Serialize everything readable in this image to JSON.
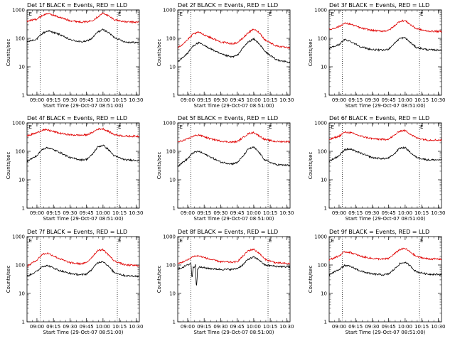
{
  "figure": {
    "xlabel": "Start Time (29-Oct-07 08:51:00)",
    "ylabel": "Counts/sec",
    "x_tick_labels": [
      "09:00",
      "09:15",
      "09:30",
      "09:45",
      "10:00",
      "10:15",
      "10:30"
    ],
    "y_tick_labels": [
      "1",
      "10",
      "100",
      "1000"
    ],
    "marker_text": "E",
    "colors": {
      "events": "#000000",
      "lld": "#e00000",
      "background": "#ffffff"
    }
  },
  "chart_data": [
    {
      "type": "line",
      "title": "Det 1f BLACK = Events, RED = LLD",
      "xlabel": "Start Time (29-Oct-07 08:51:00)",
      "ylabel": "Counts/sec",
      "xlim": [
        "08:51",
        "10:33"
      ],
      "ylim": [
        1,
        1000
      ],
      "yscale": "log",
      "x_ticks": [
        "09:00",
        "09:15",
        "09:30",
        "09:45",
        "10:00",
        "10:15",
        "10:30"
      ],
      "y_ticks": [
        1,
        10,
        100,
        1000
      ],
      "vlines": [
        "09:03",
        "10:13"
      ],
      "markers": [
        {
          "label": "E",
          "x": "08:52"
        },
        {
          "label": "E",
          "x": "10:13"
        }
      ],
      "series": [
        {
          "name": "Events",
          "x": [
            "08:51",
            "09:00",
            "09:05",
            "09:10",
            "09:20",
            "09:30",
            "09:40",
            "09:45",
            "09:50",
            "09:55",
            "10:00",
            "10:05",
            "10:10",
            "10:20",
            "10:33"
          ],
          "y": [
            75,
            95,
            150,
            185,
            140,
            90,
            75,
            80,
            100,
            165,
            205,
            160,
            110,
            75,
            70
          ]
        },
        {
          "name": "LLD",
          "x": [
            "08:51",
            "09:00",
            "09:05",
            "09:10",
            "09:20",
            "09:30",
            "09:40",
            "09:45",
            "09:50",
            "09:55",
            "10:00",
            "10:05",
            "10:10",
            "10:20",
            "10:33"
          ],
          "y": [
            400,
            480,
            640,
            760,
            560,
            420,
            380,
            380,
            420,
            560,
            780,
            620,
            460,
            380,
            370
          ]
        }
      ]
    },
    {
      "type": "line",
      "title": "Det 2f BLACK = Events, RED = LLD",
      "xlabel": "Start Time (29-Oct-07 08:51:00)",
      "ylabel": "Counts/sec",
      "xlim": [
        "08:51",
        "10:33"
      ],
      "ylim": [
        1,
        1000
      ],
      "yscale": "log",
      "x_ticks": [
        "09:00",
        "09:15",
        "09:30",
        "09:45",
        "10:00",
        "10:15",
        "10:30"
      ],
      "y_ticks": [
        1,
        10,
        100,
        1000
      ],
      "vlines": [
        "09:03",
        "10:13"
      ],
      "markers": [
        {
          "label": "E",
          "x": "08:52"
        },
        {
          "label": "E",
          "x": "10:13"
        }
      ],
      "series": [
        {
          "name": "Events",
          "x": [
            "08:51",
            "09:00",
            "09:05",
            "09:10",
            "09:20",
            "09:30",
            "09:40",
            "09:45",
            "09:50",
            "09:55",
            "10:00",
            "10:05",
            "10:10",
            "10:20",
            "10:33"
          ],
          "y": [
            15,
            30,
            55,
            70,
            45,
            28,
            22,
            25,
            45,
            75,
            95,
            65,
            35,
            18,
            14
          ]
        },
        {
          "name": "LLD",
          "x": [
            "08:51",
            "09:00",
            "09:05",
            "09:10",
            "09:20",
            "09:30",
            "09:40",
            "09:45",
            "09:50",
            "09:55",
            "10:00",
            "10:05",
            "10:10",
            "10:20",
            "10:33"
          ],
          "y": [
            45,
            90,
            140,
            165,
            110,
            75,
            65,
            70,
            100,
            160,
            210,
            160,
            90,
            55,
            45
          ]
        }
      ]
    },
    {
      "type": "line",
      "title": "Det 3f BLACK = Events, RED = LLD",
      "xlabel": "Start Time (29-Oct-07 08:51:00)",
      "ylabel": "Counts/sec",
      "xlim": [
        "08:51",
        "10:33"
      ],
      "ylim": [
        1,
        1000
      ],
      "yscale": "log",
      "x_ticks": [
        "09:00",
        "09:15",
        "09:30",
        "09:45",
        "10:00",
        "10:15",
        "10:30"
      ],
      "y_ticks": [
        1,
        10,
        100,
        1000
      ],
      "vlines": [
        "09:03",
        "10:13"
      ],
      "markers": [
        {
          "label": "E",
          "x": "08:52"
        },
        {
          "label": "E",
          "x": "10:13"
        }
      ],
      "series": [
        {
          "name": "Events",
          "x": [
            "08:51",
            "09:00",
            "09:05",
            "09:10",
            "09:20",
            "09:30",
            "09:40",
            "09:45",
            "09:50",
            "09:55",
            "10:00",
            "10:05",
            "10:10",
            "10:20",
            "10:33"
          ],
          "y": [
            45,
            60,
            90,
            80,
            50,
            40,
            38,
            42,
            65,
            100,
            105,
            70,
            48,
            40,
            38
          ]
        },
        {
          "name": "LLD",
          "x": [
            "08:51",
            "09:00",
            "09:05",
            "09:10",
            "09:20",
            "09:30",
            "09:40",
            "09:45",
            "09:50",
            "09:55",
            "10:00",
            "10:05",
            "10:10",
            "10:20",
            "10:33"
          ],
          "y": [
            200,
            260,
            340,
            320,
            230,
            190,
            180,
            190,
            270,
            400,
            420,
            300,
            220,
            180,
            175
          ]
        }
      ]
    },
    {
      "type": "line",
      "title": "Det 4f BLACK = Events, RED = LLD",
      "xlabel": "Start Time (29-Oct-07 08:51:00)",
      "ylabel": "Counts/sec",
      "xlim": [
        "08:51",
        "10:33"
      ],
      "ylim": [
        1,
        1000
      ],
      "yscale": "log",
      "x_ticks": [
        "09:00",
        "09:15",
        "09:30",
        "09:45",
        "10:00",
        "10:15",
        "10:30"
      ],
      "y_ticks": [
        1,
        10,
        100,
        1000
      ],
      "vlines": [
        "09:03",
        "10:13"
      ],
      "markers": [
        {
          "label": "E",
          "x": "08:52"
        },
        {
          "label": "E",
          "x": "10:13"
        }
      ],
      "series": [
        {
          "name": "Events",
          "x": [
            "08:51",
            "09:00",
            "09:05",
            "09:10",
            "09:20",
            "09:30",
            "09:40",
            "09:45",
            "09:50",
            "09:55",
            "10:00",
            "10:05",
            "10:10",
            "10:20",
            "10:33"
          ],
          "y": [
            45,
            70,
            120,
            135,
            95,
            60,
            50,
            52,
            75,
            140,
            165,
            115,
            70,
            50,
            48
          ]
        },
        {
          "name": "LLD",
          "x": [
            "08:51",
            "09:00",
            "09:05",
            "09:10",
            "09:20",
            "09:30",
            "09:40",
            "09:45",
            "09:50",
            "09:55",
            "10:00",
            "10:05",
            "10:10",
            "10:20",
            "10:33"
          ],
          "y": [
            350,
            450,
            570,
            560,
            440,
            380,
            370,
            380,
            450,
            600,
            620,
            500,
            390,
            340,
            340
          ]
        }
      ]
    },
    {
      "type": "line",
      "title": "Det 5f BLACK = Events, RED = LLD",
      "xlabel": "Start Time (29-Oct-07 08:51:00)",
      "ylabel": "Counts/sec",
      "xlim": [
        "08:51",
        "10:33"
      ],
      "ylim": [
        1,
        1000
      ],
      "yscale": "log",
      "x_ticks": [
        "09:00",
        "09:15",
        "09:30",
        "09:45",
        "10:00",
        "10:15",
        "10:30"
      ],
      "y_ticks": [
        1,
        10,
        100,
        1000
      ],
      "vlines": [
        "09:03",
        "10:13"
      ],
      "markers": [
        {
          "label": "E",
          "x": "08:52"
        },
        {
          "label": "E",
          "x": "10:13"
        }
      ],
      "series": [
        {
          "name": "Events",
          "x": [
            "08:51",
            "09:00",
            "09:05",
            "09:10",
            "09:20",
            "09:30",
            "09:40",
            "09:45",
            "09:50",
            "09:55",
            "10:00",
            "10:05",
            "10:10",
            "10:20",
            "10:33"
          ],
          "y": [
            30,
            55,
            90,
            100,
            65,
            42,
            36,
            40,
            65,
            120,
            140,
            90,
            50,
            34,
            32
          ]
        },
        {
          "name": "LLD",
          "x": [
            "08:51",
            "09:00",
            "09:05",
            "09:10",
            "09:20",
            "09:30",
            "09:40",
            "09:45",
            "09:50",
            "09:55",
            "10:00",
            "10:05",
            "10:10",
            "10:20",
            "10:33"
          ],
          "y": [
            210,
            270,
            340,
            380,
            280,
            230,
            210,
            220,
            300,
            420,
            460,
            350,
            260,
            220,
            220
          ]
        }
      ]
    },
    {
      "type": "line",
      "title": "Det 6f BLACK = Events, RED = LLD",
      "xlabel": "Start Time (29-Oct-07 08:51:00)",
      "ylabel": "Counts/sec",
      "xlim": [
        "08:51",
        "10:33"
      ],
      "ylim": [
        1,
        1000
      ],
      "yscale": "log",
      "x_ticks": [
        "09:00",
        "09:15",
        "09:30",
        "09:45",
        "10:00",
        "10:15",
        "10:30"
      ],
      "y_ticks": [
        1,
        10,
        100,
        1000
      ],
      "vlines": [
        "09:03",
        "10:13"
      ],
      "markers": [
        {
          "label": "E",
          "x": "08:52"
        },
        {
          "label": "E",
          "x": "10:13"
        }
      ],
      "series": [
        {
          "name": "Events",
          "x": [
            "08:51",
            "09:00",
            "09:05",
            "09:10",
            "09:20",
            "09:30",
            "09:40",
            "09:45",
            "09:50",
            "09:55",
            "10:00",
            "10:05",
            "10:10",
            "10:20",
            "10:33"
          ],
          "y": [
            45,
            70,
            115,
            120,
            85,
            60,
            55,
            58,
            80,
            130,
            135,
            90,
            62,
            50,
            50
          ]
        },
        {
          "name": "LLD",
          "x": [
            "08:51",
            "09:00",
            "09:05",
            "09:10",
            "09:20",
            "09:30",
            "09:40",
            "09:45",
            "09:50",
            "09:55",
            "10:00",
            "10:05",
            "10:10",
            "10:20",
            "10:33"
          ],
          "y": [
            260,
            340,
            470,
            460,
            340,
            280,
            260,
            270,
            360,
            520,
            540,
            400,
            300,
            250,
            250
          ]
        }
      ]
    },
    {
      "type": "line",
      "title": "Det 7f BLACK = Events, RED = LLD",
      "xlabel": "Start Time (29-Oct-07 08:51:00)",
      "ylabel": "Counts/sec",
      "xlim": [
        "08:51",
        "10:33"
      ],
      "ylim": [
        1,
        1000
      ],
      "yscale": "log",
      "x_ticks": [
        "09:00",
        "09:15",
        "09:30",
        "09:45",
        "10:00",
        "10:15",
        "10:30"
      ],
      "y_ticks": [
        1,
        10,
        100,
        1000
      ],
      "vlines": [
        "09:03",
        "10:13"
      ],
      "markers": [
        {
          "label": "E",
          "x": "08:52"
        },
        {
          "label": "E",
          "x": "10:13"
        }
      ],
      "series": [
        {
          "name": "Events",
          "x": [
            "08:51",
            "09:00",
            "09:05",
            "09:10",
            "09:20",
            "09:30",
            "09:40",
            "09:45",
            "09:50",
            "09:55",
            "10:00",
            "10:05",
            "10:10",
            "10:20",
            "10:33"
          ],
          "y": [
            40,
            60,
            90,
            95,
            65,
            50,
            45,
            48,
            70,
            120,
            135,
            90,
            55,
            42,
            40
          ]
        },
        {
          "name": "LLD",
          "x": [
            "08:51",
            "09:00",
            "09:05",
            "09:10",
            "09:20",
            "09:30",
            "09:40",
            "09:45",
            "09:50",
            "09:55",
            "10:00",
            "10:05",
            "10:10",
            "10:20",
            "10:33"
          ],
          "y": [
            90,
            150,
            240,
            260,
            170,
            120,
            110,
            120,
            190,
            320,
            350,
            230,
            140,
            100,
            95
          ]
        }
      ]
    },
    {
      "type": "line",
      "title": "Det 8f BLACK = Events, RED = LLD",
      "xlabel": "Start Time (29-Oct-07 08:51:00)",
      "ylabel": "Counts/sec",
      "xlim": [
        "08:51",
        "10:33"
      ],
      "ylim": [
        1,
        1000
      ],
      "yscale": "log",
      "x_ticks": [
        "09:00",
        "09:15",
        "09:30",
        "09:45",
        "10:00",
        "10:15",
        "10:30"
      ],
      "y_ticks": [
        1,
        10,
        100,
        1000
      ],
      "vlines": [
        "09:03",
        "10:13"
      ],
      "markers": [
        {
          "label": "E",
          "x": "08:52"
        },
        {
          "label": "E",
          "x": "10:13"
        }
      ],
      "series": [
        {
          "name": "Events",
          "x": [
            "08:51",
            "09:00",
            "09:02",
            "09:03",
            "09:04",
            "09:05",
            "09:06",
            "09:07",
            "09:08",
            "09:09",
            "09:10",
            "09:20",
            "09:30",
            "09:40",
            "09:45",
            "09:50",
            "09:55",
            "10:00",
            "10:05",
            "10:10",
            "10:20",
            "10:33"
          ],
          "y": [
            70,
            100,
            110,
            115,
            30,
            90,
            80,
            100,
            15,
            70,
            85,
            75,
            70,
            70,
            75,
            100,
            160,
            190,
            150,
            100,
            90,
            85
          ]
        },
        {
          "name": "LLD",
          "x": [
            "08:51",
            "09:00",
            "09:05",
            "09:10",
            "09:20",
            "09:30",
            "09:40",
            "09:45",
            "09:50",
            "09:55",
            "10:00",
            "10:05",
            "10:10",
            "10:20",
            "10:33"
          ],
          "y": [
            110,
            150,
            200,
            210,
            160,
            130,
            125,
            130,
            200,
            320,
            360,
            260,
            160,
            120,
            110
          ]
        }
      ]
    },
    {
      "type": "line",
      "title": "Det 9f BLACK = Events, RED = LLD",
      "xlabel": "Start Time (29-Oct-07 08:51:00)",
      "ylabel": "Counts/sec",
      "xlim": [
        "08:51",
        "10:33"
      ],
      "ylim": [
        1,
        1000
      ],
      "yscale": "log",
      "x_ticks": [
        "09:00",
        "09:15",
        "09:30",
        "09:45",
        "10:00",
        "10:15",
        "10:30"
      ],
      "y_ticks": [
        1,
        10,
        100,
        1000
      ],
      "vlines": [
        "09:03",
        "10:13"
      ],
      "markers": [
        {
          "label": "E",
          "x": "08:52"
        },
        {
          "label": "E",
          "x": "10:13"
        }
      ],
      "series": [
        {
          "name": "Events",
          "x": [
            "08:51",
            "09:00",
            "09:05",
            "09:10",
            "09:20",
            "09:30",
            "09:40",
            "09:45",
            "09:50",
            "09:55",
            "10:00",
            "10:05",
            "10:10",
            "10:20",
            "10:33"
          ],
          "y": [
            45,
            70,
            95,
            90,
            60,
            48,
            45,
            48,
            70,
            110,
            125,
            90,
            58,
            48,
            46
          ]
        },
        {
          "name": "LLD",
          "x": [
            "08:51",
            "09:00",
            "09:05",
            "09:10",
            "09:20",
            "09:30",
            "09:40",
            "09:45",
            "09:50",
            "09:55",
            "10:00",
            "10:05",
            "10:10",
            "10:20",
            "10:33"
          ],
          "y": [
            150,
            210,
            290,
            280,
            200,
            170,
            160,
            170,
            240,
            350,
            380,
            280,
            200,
            165,
            160
          ]
        }
      ]
    }
  ]
}
